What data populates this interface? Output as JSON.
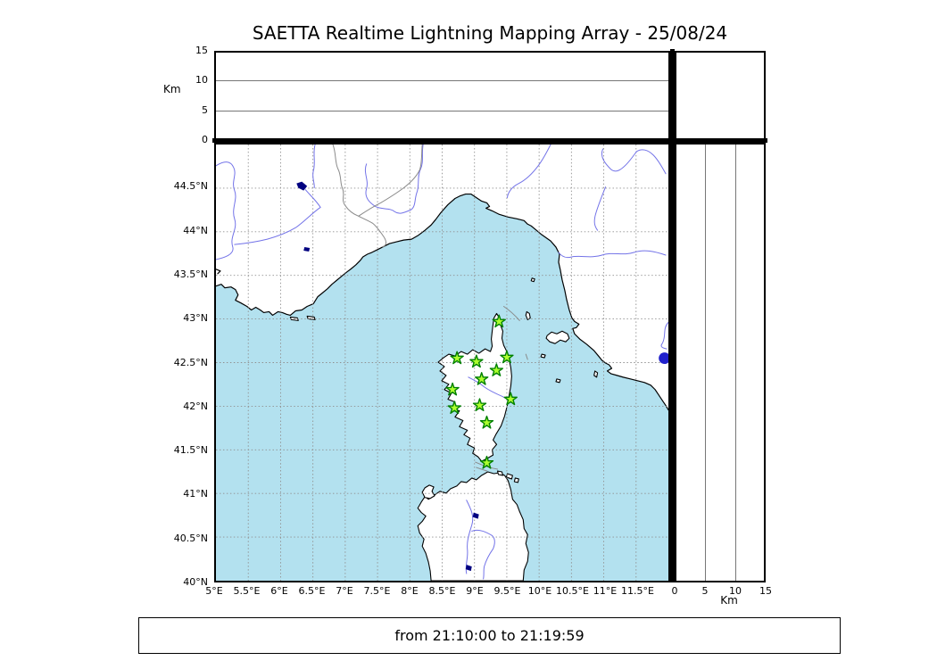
{
  "title": "SAETTA Realtime Lightning Mapping Array - 25/08/24",
  "time_window": "from 21:10:00 to 21:19:59",
  "axes": {
    "altitude_label": "Km",
    "top_panel_alt_ticks": [
      "15",
      "10",
      "5",
      "0"
    ],
    "right_panel_alt_ticks": [
      "0",
      "5",
      "10",
      "15"
    ],
    "lon_tick_labels": [
      "5°E",
      "5.5°E",
      "6°E",
      "6.5°E",
      "7°E",
      "7.5°E",
      "8°E",
      "8.5°E",
      "9°E",
      "9.5°E",
      "10°E",
      "10.5°E",
      "11°E",
      "11.5°E"
    ],
    "lat_tick_labels": [
      "44.5°N",
      "44°N",
      "43.5°N",
      "43°N",
      "42.5°N",
      "42°N",
      "41.5°N",
      "41°N",
      "40.5°N",
      "40°N"
    ]
  },
  "chart_data": {
    "type": "scatter",
    "title": "SAETTA Realtime Lightning Mapping Array - 25/08/24",
    "time_window": "from 21:10:00 to 21:19:59",
    "map_extent": {
      "lon_min": 5,
      "lon_max": 12,
      "lat_min": 40,
      "lat_max": 45
    },
    "altitude_axis": {
      "label": "Km",
      "min": 0,
      "max": 15,
      "ticks": [
        0,
        5,
        10,
        15
      ]
    },
    "graticule_step_deg": 0.5,
    "legend_position": "top-right-empty-box",
    "stations": [
      {
        "lon": 9.38,
        "lat": 42.97
      },
      {
        "lon": 8.73,
        "lat": 42.55
      },
      {
        "lon": 9.03,
        "lat": 42.51
      },
      {
        "lon": 9.5,
        "lat": 42.56
      },
      {
        "lon": 9.34,
        "lat": 42.41
      },
      {
        "lon": 9.11,
        "lat": 42.31
      },
      {
        "lon": 8.66,
        "lat": 42.19
      },
      {
        "lon": 9.56,
        "lat": 42.08
      },
      {
        "lon": 8.69,
        "lat": 41.98
      },
      {
        "lon": 9.08,
        "lat": 42.01
      },
      {
        "lon": 9.19,
        "lat": 41.81
      },
      {
        "lon": 9.19,
        "lat": 41.35
      }
    ],
    "station_marker": {
      "shape": "star",
      "fill": "#adff2f",
      "edge": "#008000"
    },
    "detections": [
      {
        "lon": 11.94,
        "lat": 42.55
      }
    ],
    "detection_marker": {
      "shape": "circle",
      "fill": "#2121cc",
      "radius_px": 6.5
    }
  },
  "colors": {
    "sea": "#b3e1ef",
    "land": "#ffffff",
    "river": "#7373e8",
    "lake": "#000080",
    "grid": "#909090",
    "coast": "#000000",
    "border": "#8a8a8a",
    "frame": "#000000"
  }
}
